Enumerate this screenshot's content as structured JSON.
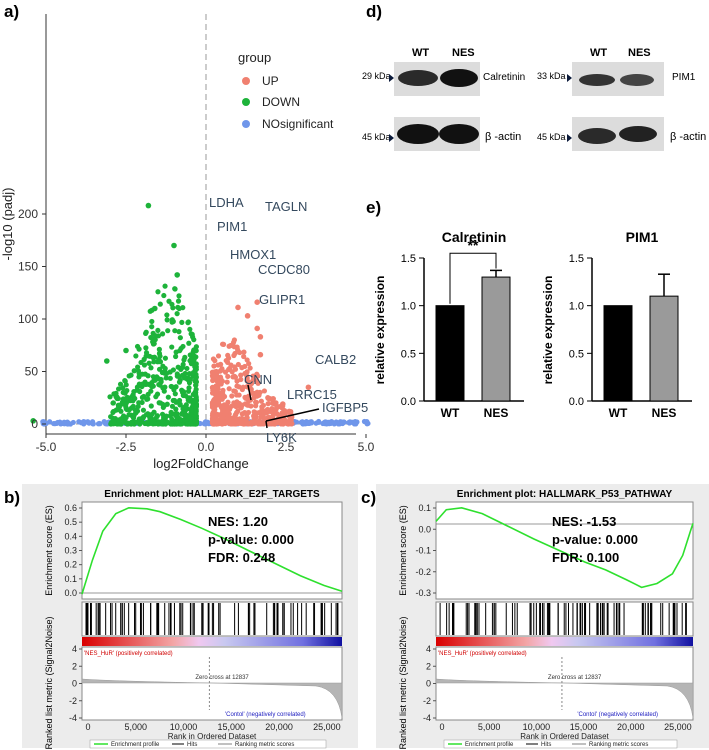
{
  "panels": {
    "a": "a)",
    "b": "b)",
    "c": "c)",
    "d": "d)",
    "e": "e)"
  },
  "volcano": {
    "xlabel": "log2FoldChange",
    "ylabel": "-log10 (padj)",
    "xticks": [
      "-5.0",
      "-2.5",
      "0.0",
      "2.5",
      "5.0"
    ],
    "yticks": [
      "0",
      "50",
      "100",
      "150",
      "200"
    ],
    "legend": {
      "title": "group",
      "items": [
        {
          "label": "UP",
          "color": "#f08070"
        },
        {
          "label": "DOWN",
          "color": "#1db33a"
        },
        {
          "label": "NOsignificant",
          "color": "#6f96ea"
        }
      ]
    },
    "genes": [
      "LDHA",
      "TAGLN",
      "PIM1",
      "HMOX1",
      "CCDC80",
      "GLIPR1",
      "CALB2",
      "CNN",
      "LRRC15",
      "IGFBP5",
      "LY6K"
    ]
  },
  "western": {
    "calretinin": {
      "lanes": [
        "WT",
        "NES"
      ],
      "row1_kda": "29 kDa",
      "row1_name": "Calretinin",
      "row2_kda": "45 kDa",
      "row2_name": "β -actin"
    },
    "pim1": {
      "lanes": [
        "WT",
        "NES"
      ],
      "row1_kda": "33 kDa",
      "row1_name": "PIM1",
      "row2_kda": "45 kDa",
      "row2_name": "β -actin"
    }
  },
  "chart_data": [
    {
      "type": "bar",
      "title": "Calretinin",
      "ylabel": "relative expression",
      "categories": [
        "WT",
        "NES"
      ],
      "values": [
        1.0,
        1.3
      ],
      "errors": [
        0,
        0.07
      ],
      "ylim": [
        0.0,
        1.5
      ],
      "yticks": [
        "0.0",
        "0.5",
        "1.0",
        "1.5"
      ],
      "significance": "**",
      "colors": [
        "#000000",
        "#9a9a9a"
      ]
    },
    {
      "type": "bar",
      "title": "PIM1",
      "ylabel": "relative expression",
      "categories": [
        "WT",
        "NES"
      ],
      "values": [
        1.0,
        1.1
      ],
      "errors": [
        0,
        0.23
      ],
      "ylim": [
        0.0,
        1.5
      ],
      "yticks": [
        "0.0",
        "0.5",
        "1.0",
        "1.5"
      ],
      "colors": [
        "#000000",
        "#9a9a9a"
      ]
    }
  ],
  "gsea_b": {
    "title": "Enrichment plot: HALLMARK_E2F_TARGETS",
    "nes": "NES: 1.20",
    "pvalue": "p-value: 0.000",
    "fdr": "FDR: 0.248",
    "es_label": "Enrichment score (ES)",
    "es_ticks": [
      "0.6",
      "0.5",
      "0.4",
      "0.3",
      "0.2",
      "0.1",
      "0.0"
    ],
    "pos_label": "'NES_HuR' (positively correlated)",
    "neg_label": "'Contol' (negatively correlated)",
    "zero_cross": "Zero cross at 12837",
    "rank_label": "Ranked list metric (Signal2Noise)",
    "rank_ticks": [
      "4",
      "2",
      "0",
      "-2",
      "-4"
    ],
    "xlabel": "Rank in Ordered Dataset",
    "xticks": [
      "0",
      "5,000",
      "10,000",
      "15,000",
      "20,000",
      "25,000"
    ],
    "legend": [
      "Enrichment profile",
      "Hits",
      "Ranking metric scores"
    ]
  },
  "gsea_c": {
    "title": "Enrichment plot: HALLMARK_P53_PATHWAY",
    "nes": "NES: -1.53",
    "pvalue": "p-value: 0.000",
    "fdr": "FDR: 0.100",
    "es_label": "Enrichment score (ES)",
    "es_ticks": [
      "0.1",
      "0.0",
      "-0.1",
      "-0.2",
      "-0.3"
    ],
    "pos_label": "'NES_HuR' (positively correlated)",
    "neg_label": "'Contol' (negatively correlated)",
    "zero_cross": "Zero cross at 12837",
    "rank_label": "Ranked list metric (Signal2Noise)",
    "rank_ticks": [
      "4",
      "2",
      "0",
      "-2",
      "-4"
    ],
    "xlabel": "Rank in Ordered Dataset",
    "xticks": [
      "0",
      "5,000",
      "10,000",
      "15,000",
      "20,000",
      "25,000"
    ],
    "legend": [
      "Enrichment profile",
      "Hits",
      "Ranking metric scores"
    ]
  }
}
